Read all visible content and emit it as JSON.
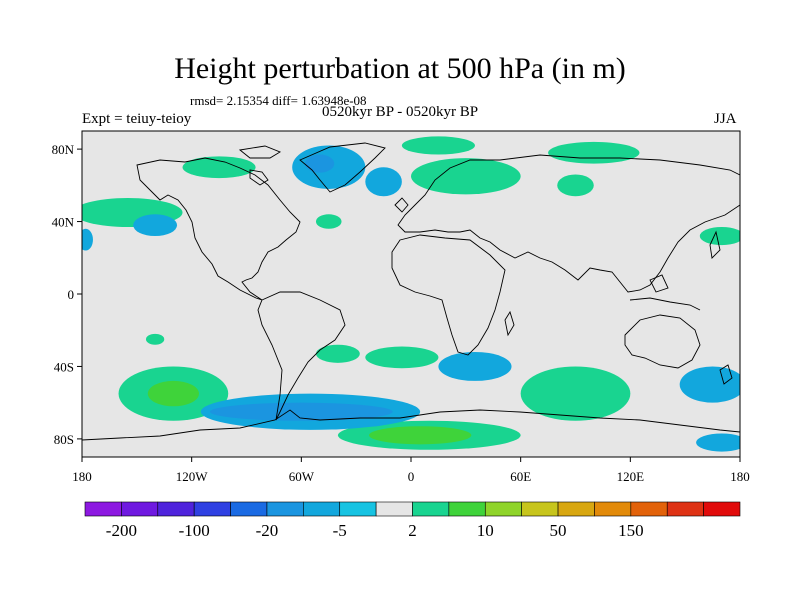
{
  "title": "Height perturbation at 500 hPa (in m)",
  "stats_line": "rmsd= 2.15354  diff= 1.63948e-08",
  "period_line": "0520kyr BP - 0520kyr BP",
  "experiment_label": "Expt = teiuy-teioy",
  "season_label": "JJA",
  "map": {
    "projection": "cylindrical-equidistant",
    "lon_range": [
      -180,
      180
    ],
    "lat_range": [
      -90,
      90
    ],
    "background_color": "#e6e6e6",
    "coastline_color": "#000000",
    "y_ticks": [
      {
        "lat": 80,
        "label": "80N"
      },
      {
        "lat": 40,
        "label": "40N"
      },
      {
        "lat": 0,
        "label": "0"
      },
      {
        "lat": -40,
        "label": "40S"
      },
      {
        "lat": -80,
        "label": "80S"
      }
    ],
    "x_ticks": [
      {
        "lon": -180,
        "label": "180"
      },
      {
        "lon": -120,
        "label": "120W"
      },
      {
        "lon": -60,
        "label": "60W"
      },
      {
        "lon": 0,
        "label": "0"
      },
      {
        "lon": 60,
        "label": "60E"
      },
      {
        "lon": 120,
        "label": "120E"
      },
      {
        "lon": 180,
        "label": "180"
      }
    ],
    "anomaly_regions": [
      {
        "name": "greenland-low",
        "level": "-5 to -20",
        "color": "#12a7dd",
        "center": [
          -45,
          70
        ],
        "radius": [
          20,
          12
        ]
      },
      {
        "name": "greenland-core",
        "level": "-20 to -50",
        "color": "#1b95e0",
        "center": [
          -50,
          72
        ],
        "radius": [
          8,
          5
        ]
      },
      {
        "name": "north-atlantic-low",
        "level": "-5 to -20",
        "color": "#12a7dd",
        "center": [
          -15,
          62
        ],
        "radius": [
          10,
          8
        ]
      },
      {
        "name": "europe-high",
        "level": "2 to 10",
        "color": "#19d490",
        "center": [
          30,
          65
        ],
        "radius": [
          30,
          10
        ]
      },
      {
        "name": "arctic-high",
        "level": "2 to 10",
        "color": "#19d490",
        "center": [
          15,
          82
        ],
        "radius": [
          20,
          5
        ]
      },
      {
        "name": "siberia-high",
        "level": "2 to 10",
        "color": "#19d490",
        "center": [
          100,
          78
        ],
        "radius": [
          25,
          6
        ]
      },
      {
        "name": "central-asia-high",
        "level": "2 to 10",
        "color": "#19d490",
        "center": [
          90,
          60
        ],
        "radius": [
          10,
          6
        ]
      },
      {
        "name": "north-pacific-high",
        "level": "2 to 10",
        "color": "#19d490",
        "center": [
          -155,
          45
        ],
        "radius": [
          30,
          8
        ]
      },
      {
        "name": "north-pacific-low",
        "level": "-5 to -20",
        "color": "#12a7dd",
        "center": [
          -140,
          38
        ],
        "radius": [
          12,
          6
        ]
      },
      {
        "name": "north-america-high",
        "level": "2 to 10",
        "color": "#19d490",
        "center": [
          -105,
          70
        ],
        "radius": [
          20,
          6
        ]
      },
      {
        "name": "east-asia-high",
        "level": "2 to 10",
        "color": "#19d490",
        "center": [
          170,
          32
        ],
        "radius": [
          12,
          5
        ]
      },
      {
        "name": "east-asia-low",
        "level": "-5 to -20",
        "color": "#12a7dd",
        "center": [
          -178,
          30
        ],
        "radius": [
          4,
          6
        ]
      },
      {
        "name": "atlantic-high",
        "level": "2 to 10",
        "color": "#19d490",
        "center": [
          -45,
          40
        ],
        "radius": [
          7,
          4
        ]
      },
      {
        "name": "south-pacific-high",
        "level": "2 to 10",
        "color": "#19d490",
        "center": [
          -130,
          -55
        ],
        "radius": [
          30,
          15
        ]
      },
      {
        "name": "south-pacific-core",
        "level": "10 to 20",
        "color": "#3fd33a",
        "center": [
          -130,
          -55
        ],
        "radius": [
          14,
          7
        ]
      },
      {
        "name": "south-atlantic-high",
        "level": "2 to 10",
        "color": "#19d490",
        "center": [
          -5,
          -35
        ],
        "radius": [
          20,
          6
        ]
      },
      {
        "name": "south-america-high",
        "level": "2 to 10",
        "color": "#19d490",
        "center": [
          -40,
          -33
        ],
        "radius": [
          12,
          5
        ]
      },
      {
        "name": "indian-ocean-high",
        "level": "2 to 10",
        "color": "#19d490",
        "center": [
          90,
          -55
        ],
        "radius": [
          30,
          15
        ]
      },
      {
        "name": "antarctic-high",
        "level": "2 to 10",
        "color": "#19d490",
        "center": [
          10,
          -78
        ],
        "radius": [
          50,
          8
        ]
      },
      {
        "name": "antarctic-core",
        "level": "10 to 20",
        "color": "#3fd33a",
        "center": [
          5,
          -78
        ],
        "radius": [
          28,
          5
        ]
      },
      {
        "name": "southern-ocean-low",
        "level": "-5 to -20",
        "color": "#12a7dd",
        "center": [
          -55,
          -65
        ],
        "radius": [
          60,
          10
        ]
      },
      {
        "name": "southern-ocean-core",
        "level": "-20 to -50",
        "color": "#1b95e0",
        "center": [
          -60,
          -65
        ],
        "radius": [
          50,
          5
        ]
      },
      {
        "name": "south-indian-low",
        "level": "-5 to -20",
        "color": "#12a7dd",
        "center": [
          35,
          -40
        ],
        "radius": [
          20,
          8
        ]
      },
      {
        "name": "australia-low",
        "level": "-5 to -20",
        "color": "#12a7dd",
        "center": [
          165,
          -50
        ],
        "radius": [
          18,
          10
        ]
      },
      {
        "name": "pacific-tropic-high",
        "level": "2 to 10",
        "color": "#19d490",
        "center": [
          -140,
          -25
        ],
        "radius": [
          5,
          3
        ]
      },
      {
        "name": "south-pole-low",
        "level": "-5 to -20",
        "color": "#12a7dd",
        "center": [
          170,
          -82
        ],
        "radius": [
          14,
          5
        ]
      }
    ]
  },
  "colorbar": {
    "colors": [
      "#8d19e1",
      "#6f19e0",
      "#4f23dc",
      "#2f40e2",
      "#1a6ae3",
      "#1b95e0",
      "#12a7dd",
      "#17c3e2",
      "#e6e6e6",
      "#19d490",
      "#3fd33a",
      "#8fd42a",
      "#c7c51d",
      "#d8a711",
      "#e28a0a",
      "#e2620a",
      "#de3214",
      "#e10b0b"
    ],
    "labels": [
      {
        "index": 1,
        "text": "-200"
      },
      {
        "index": 3,
        "text": "-100"
      },
      {
        "index": 5,
        "text": "-20"
      },
      {
        "index": 7,
        "text": "-5"
      },
      {
        "index": 9,
        "text": "2"
      },
      {
        "index": 11,
        "text": "10"
      },
      {
        "index": 13,
        "text": "50"
      },
      {
        "index": 15,
        "text": "150"
      }
    ]
  }
}
